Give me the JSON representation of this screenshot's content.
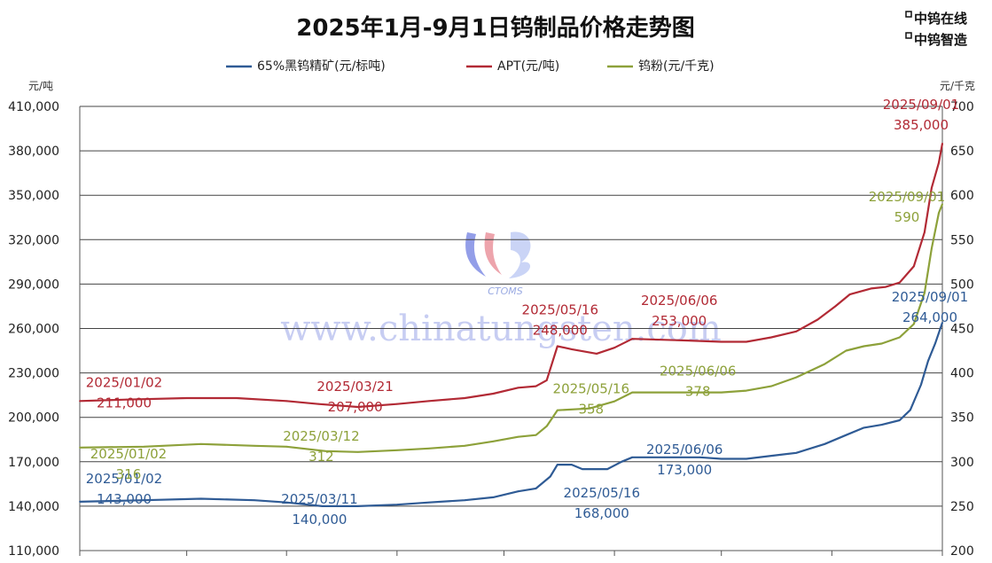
{
  "page": {
    "title": "2025年1月-9月1日钨制品价格走势图",
    "brand_lines": [
      "中钨在线",
      "中钨智造"
    ]
  },
  "watermark": {
    "logo_text": "CTOMS",
    "url": "www.chinatungsten.com",
    "logo_colors": [
      "#3c4fd6",
      "#e05a6a",
      "#9fb2ef"
    ]
  },
  "chart_data": {
    "type": "line",
    "title": "2025年1月-9月1日钨制品价格走势图",
    "left_unit": "元/吨",
    "right_unit": "元/千克",
    "left_axis": {
      "range": [
        110000,
        410000
      ],
      "ticks": [
        "110,000",
        "140,000",
        "170,000",
        "200,000",
        "230,000",
        "260,000",
        "290,000",
        "320,000",
        "350,000",
        "380,000",
        "410,000"
      ]
    },
    "right_axis": {
      "range": [
        200,
        700
      ],
      "ticks": [
        "200",
        "250",
        "300",
        "350",
        "400",
        "450",
        "500",
        "550",
        "600",
        "650",
        "700"
      ]
    },
    "grid": "horizontal",
    "legend_position": "top",
    "x_start": "2025/01/02",
    "x_end": "2025/09/01",
    "series": [
      {
        "name": "65%黑钨精矿(元/标吨)",
        "color": "#2f5b95",
        "axis": "left",
        "points": [
          [
            "2025/01/02",
            143000
          ],
          [
            "2025/01/10",
            143500
          ],
          [
            "2025/01/20",
            144000
          ],
          [
            "2025/02/05",
            145000
          ],
          [
            "2025/02/20",
            144000
          ],
          [
            "2025/03/01",
            142500
          ],
          [
            "2025/03/11",
            140000
          ],
          [
            "2025/03/21",
            140000
          ],
          [
            "2025/04/01",
            141000
          ],
          [
            "2025/04/10",
            142500
          ],
          [
            "2025/04/20",
            144000
          ],
          [
            "2025/04/28",
            146000
          ],
          [
            "2025/05/05",
            150000
          ],
          [
            "2025/05/10",
            152000
          ],
          [
            "2025/05/14",
            160000
          ],
          [
            "2025/05/16",
            168000
          ],
          [
            "2025/05/20",
            168000
          ],
          [
            "2025/05/23",
            165000
          ],
          [
            "2025/05/30",
            165000
          ],
          [
            "2025/06/03",
            170000
          ],
          [
            "2025/06/06",
            173000
          ],
          [
            "2025/06/15",
            173000
          ],
          [
            "2025/06/25",
            173000
          ],
          [
            "2025/07/01",
            172000
          ],
          [
            "2025/07/08",
            172000
          ],
          [
            "2025/07/15",
            174000
          ],
          [
            "2025/07/22",
            176000
          ],
          [
            "2025/07/30",
            182000
          ],
          [
            "2025/08/05",
            188000
          ],
          [
            "2025/08/10",
            193000
          ],
          [
            "2025/08/15",
            195000
          ],
          [
            "2025/08/20",
            198000
          ],
          [
            "2025/08/23",
            205000
          ],
          [
            "2025/08/26",
            222000
          ],
          [
            "2025/08/28",
            238000
          ],
          [
            "2025/08/30",
            250000
          ],
          [
            "2025/09/01",
            264000
          ]
        ],
        "labels": [
          {
            "date": "2025/01/02",
            "value": "143,000"
          },
          {
            "date": "2025/03/11",
            "value": "140,000"
          },
          {
            "date": "2025/05/16",
            "value": "168,000"
          },
          {
            "date": "2025/06/06",
            "value": "173,000"
          },
          {
            "date": "2025/09/01",
            "value": "264,000"
          }
        ]
      },
      {
        "name": "APT(元/吨)",
        "color": "#b22a35",
        "axis": "left",
        "points": [
          [
            "2025/01/02",
            211000
          ],
          [
            "2025/01/15",
            212000
          ],
          [
            "2025/02/01",
            213000
          ],
          [
            "2025/02/15",
            213000
          ],
          [
            "2025/03/01",
            211000
          ],
          [
            "2025/03/10",
            209000
          ],
          [
            "2025/03/21",
            207000
          ],
          [
            "2025/04/01",
            209000
          ],
          [
            "2025/04/10",
            211000
          ],
          [
            "2025/04/20",
            213000
          ],
          [
            "2025/04/28",
            216000
          ],
          [
            "2025/05/05",
            220000
          ],
          [
            "2025/05/10",
            221000
          ],
          [
            "2025/05/13",
            225000
          ],
          [
            "2025/05/16",
            248000
          ],
          [
            "2025/05/20",
            246000
          ],
          [
            "2025/05/27",
            243000
          ],
          [
            "2025/06/01",
            247000
          ],
          [
            "2025/06/06",
            253000
          ],
          [
            "2025/06/20",
            252000
          ],
          [
            "2025/07/01",
            251000
          ],
          [
            "2025/07/08",
            251000
          ],
          [
            "2025/07/15",
            254000
          ],
          [
            "2025/07/22",
            258000
          ],
          [
            "2025/07/28",
            266000
          ],
          [
            "2025/08/02",
            275000
          ],
          [
            "2025/08/06",
            283000
          ],
          [
            "2025/08/12",
            287000
          ],
          [
            "2025/08/16",
            288000
          ],
          [
            "2025/08/20",
            291000
          ],
          [
            "2025/08/24",
            302000
          ],
          [
            "2025/08/27",
            325000
          ],
          [
            "2025/08/29",
            355000
          ],
          [
            "2025/08/31",
            372000
          ],
          [
            "2025/09/01",
            385000
          ]
        ],
        "labels": [
          {
            "date": "2025/01/02",
            "value": "211,000"
          },
          {
            "date": "2025/03/21",
            "value": "207,000"
          },
          {
            "date": "2025/05/16",
            "value": "248,000"
          },
          {
            "date": "2025/06/06",
            "value": "253,000"
          },
          {
            "date": "2025/09/01",
            "value": "385,000"
          }
        ]
      },
      {
        "name": "钨粉(元/千克)",
        "color": "#8da13a",
        "axis": "right",
        "points": [
          [
            "2025/01/02",
            316
          ],
          [
            "2025/01/20",
            317
          ],
          [
            "2025/02/05",
            320
          ],
          [
            "2025/02/20",
            318
          ],
          [
            "2025/03/01",
            317
          ],
          [
            "2025/03/12",
            312
          ],
          [
            "2025/03/21",
            311
          ],
          [
            "2025/04/01",
            313
          ],
          [
            "2025/04/10",
            315
          ],
          [
            "2025/04/20",
            318
          ],
          [
            "2025/04/28",
            323
          ],
          [
            "2025/05/05",
            328
          ],
          [
            "2025/05/10",
            330
          ],
          [
            "2025/05/13",
            340
          ],
          [
            "2025/05/16",
            358
          ],
          [
            "2025/05/25",
            360
          ],
          [
            "2025/06/01",
            368
          ],
          [
            "2025/06/06",
            378
          ],
          [
            "2025/06/20",
            378
          ],
          [
            "2025/07/01",
            378
          ],
          [
            "2025/07/08",
            380
          ],
          [
            "2025/07/15",
            385
          ],
          [
            "2025/07/22",
            395
          ],
          [
            "2025/07/30",
            410
          ],
          [
            "2025/08/05",
            425
          ],
          [
            "2025/08/10",
            430
          ],
          [
            "2025/08/15",
            433
          ],
          [
            "2025/08/20",
            440
          ],
          [
            "2025/08/24",
            455
          ],
          [
            "2025/08/27",
            490
          ],
          [
            "2025/08/29",
            540
          ],
          [
            "2025/08/31",
            580
          ],
          [
            "2025/09/01",
            590
          ]
        ],
        "labels": [
          {
            "date": "2025/01/02",
            "value": "316"
          },
          {
            "date": "2025/03/12",
            "value": "312"
          },
          {
            "date": "2025/05/16",
            "value": "358"
          },
          {
            "date": "2025/06/06",
            "value": "378"
          },
          {
            "date": "2025/09/01",
            "value": "590"
          }
        ]
      }
    ]
  }
}
